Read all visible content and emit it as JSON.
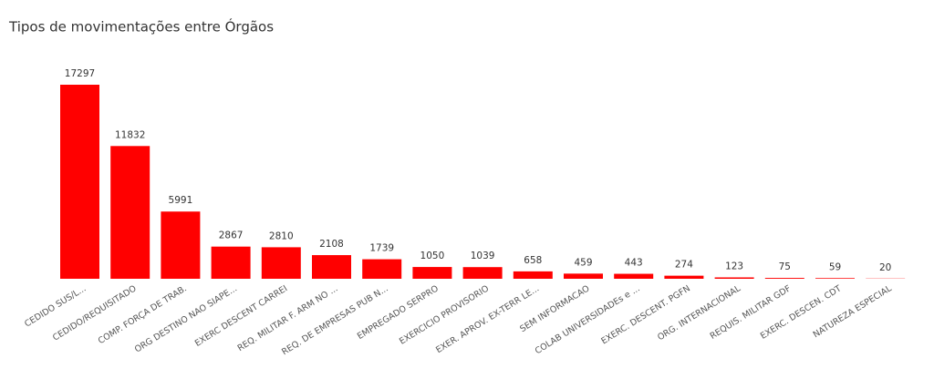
{
  "chart_data": {
    "type": "bar",
    "title": "Tipos de movimentações entre Órgãos",
    "categories": [
      "CEDIDO SUS/L...",
      "CEDIDO/REQUISITADO",
      "COMP. FORÇA DE TRAB.",
      "ORG DESTINO NAO SIAPE...",
      "EXERC DESCENT CARREI",
      "REQ. MILITAR F. ARM NO ...",
      "REQ. DE EMPRESAS PUB N...",
      "EMPREGADO SERPRO",
      "EXERCICIO PROVISORIO",
      "EXER. APROV. EX-TERR LE...",
      "SEM INFORMACAO",
      "COLAB UNIVERSIDADEs e ...",
      "EXERC. DESCENT. PGFN",
      "ORG. INTERNACIONAL",
      "REQUIS. MILITAR GDF",
      "EXERC. DESCEN. CDT",
      "NATUREZA ESPECIAL"
    ],
    "values": [
      17297,
      11832,
      5991,
      2867,
      2810,
      2108,
      1739,
      1050,
      1039,
      658,
      459,
      443,
      274,
      123,
      75,
      59,
      20
    ],
    "color": "#ff0000"
  }
}
